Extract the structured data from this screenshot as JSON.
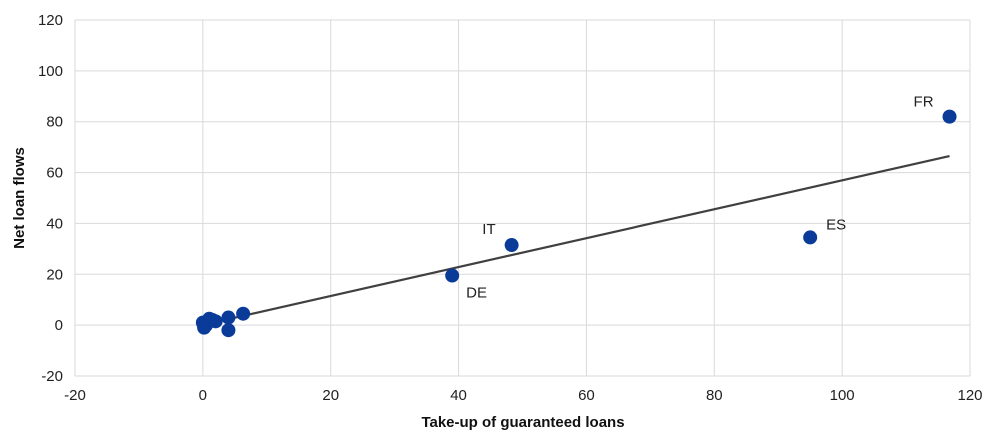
{
  "chart_data": {
    "type": "scatter",
    "title": "",
    "xlabel": "Take-up of guaranteed loans",
    "ylabel": "Net loan flows",
    "xlim": [
      -20,
      120
    ],
    "ylim": [
      -20,
      120
    ],
    "xticks": [
      "-20",
      "0",
      "20",
      "40",
      "60",
      "80",
      "100",
      "120"
    ],
    "yticks": [
      "-20",
      "0",
      "20",
      "40",
      "60",
      "80",
      "100",
      "120"
    ],
    "grid": true,
    "point_color": "#0a3b99",
    "trend_color": "#404040",
    "points": [
      {
        "x": 0,
        "y": 1,
        "label": ""
      },
      {
        "x": 0.2,
        "y": -1,
        "label": ""
      },
      {
        "x": 0.5,
        "y": 0,
        "label": ""
      },
      {
        "x": 1,
        "y": 2.5,
        "label": ""
      },
      {
        "x": 1.5,
        "y": 2,
        "label": ""
      },
      {
        "x": 2,
        "y": 1.5,
        "label": ""
      },
      {
        "x": 4,
        "y": 3,
        "label": ""
      },
      {
        "x": 4,
        "y": -2,
        "label": ""
      },
      {
        "x": 6.3,
        "y": 4.5,
        "label": ""
      },
      {
        "x": 39,
        "y": 19.5,
        "label": "DE"
      },
      {
        "x": 48.3,
        "y": 31.5,
        "label": "IT"
      },
      {
        "x": 95,
        "y": 34.5,
        "label": "ES"
      },
      {
        "x": 116.8,
        "y": 82,
        "label": "FR"
      }
    ],
    "trendline": {
      "x": [
        0,
        116.8
      ],
      "y": [
        0.1,
        66.5
      ]
    }
  }
}
